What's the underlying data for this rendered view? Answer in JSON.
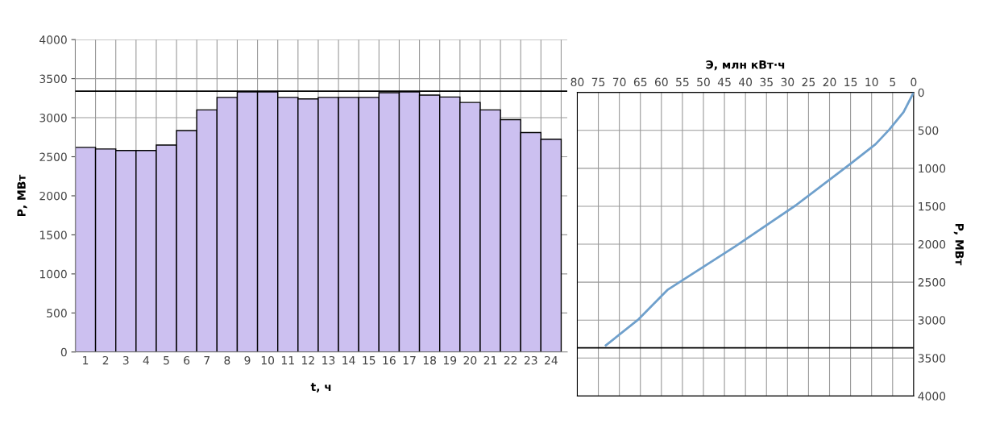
{
  "chart_data": [
    {
      "type": "bar",
      "xlabel": "t, ч",
      "ylabel": "Р, МВт",
      "categories": [
        "1",
        "2",
        "3",
        "4",
        "5",
        "6",
        "7",
        "8",
        "9",
        "10",
        "11",
        "12",
        "13",
        "14",
        "15",
        "16",
        "17",
        "18",
        "19",
        "20",
        "21",
        "22",
        "23",
        "24"
      ],
      "values": [
        2620,
        2600,
        2580,
        2580,
        2650,
        2835,
        3100,
        3260,
        3330,
        3330,
        3260,
        3240,
        3260,
        3260,
        3260,
        3320,
        3330,
        3290,
        3265,
        3195,
        3100,
        2975,
        2810,
        2725
      ],
      "color": "#ccc0f0",
      "ylim": [
        0,
        4000
      ],
      "yticks": [
        0,
        500,
        1000,
        1500,
        2000,
        2500,
        3000,
        3500,
        4000
      ],
      "grid": true,
      "ref_lines": [
        {
          "axis": "y",
          "value": 3340,
          "color": "#000000"
        }
      ]
    },
    {
      "type": "line",
      "xlabel": "Э, млн кВт·ч",
      "ylabel": "Р, МВт",
      "series": [
        {
          "color": "#6fa0cc",
          "x": [
            0,
            2.4,
            5.8,
            9.1,
            15.3,
            28.1,
            42.4,
            58.6,
            65.4,
            73.2
          ],
          "values": [
            0,
            261,
            491,
            684,
            953,
            1490,
            2028,
            2604,
            2988,
            3333
          ]
        }
      ],
      "xlim": [
        80,
        0
      ],
      "xticks": [
        80,
        75,
        70,
        65,
        60,
        55,
        50,
        45,
        40,
        35,
        30,
        25,
        20,
        15,
        10,
        5,
        0
      ],
      "ylim": [
        4000,
        0
      ],
      "yticks": [
        0,
        500,
        1000,
        1500,
        2000,
        2500,
        3000,
        3500,
        4000
      ],
      "grid": true,
      "ref_lines": [
        {
          "axis": "y",
          "value": 3365,
          "color": "#000000"
        }
      ]
    }
  ]
}
